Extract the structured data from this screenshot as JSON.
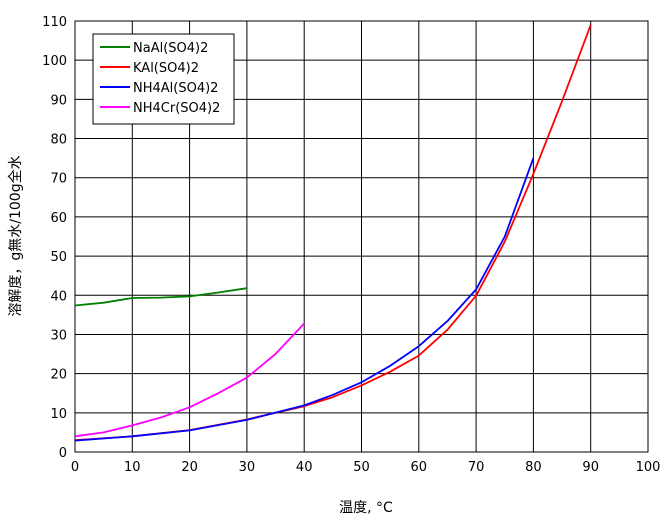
{
  "chart_data": {
    "type": "line",
    "xlabel": "温度, °C",
    "ylabel": "溶解度，g無水/100g全水",
    "xlim": [
      0,
      100
    ],
    "ylim": [
      0,
      110
    ],
    "xticks": [
      "0",
      "10",
      "20",
      "30",
      "40",
      "50",
      "60",
      "70",
      "80",
      "90",
      "100"
    ],
    "yticks": [
      "0",
      "10",
      "20",
      "30",
      "40",
      "50",
      "60",
      "70",
      "80",
      "90",
      "100",
      "110"
    ],
    "grid": true,
    "legend": "top-left",
    "series": [
      {
        "name": "NaAl(SO4)2",
        "color": "#008000",
        "x": [
          0,
          5,
          10,
          15,
          20,
          25,
          30
        ],
        "y": [
          37.4,
          38.1,
          39.3,
          39.4,
          39.7,
          40.7,
          41.8
        ]
      },
      {
        "name": "KAl(SO4)2",
        "color": "#ff0000",
        "x": [
          0,
          10,
          20,
          30,
          40,
          45,
          50,
          55,
          60,
          65,
          70,
          75,
          80,
          85,
          90
        ],
        "y": [
          3,
          4,
          5.6,
          8.3,
          11.7,
          14,
          17,
          20.5,
          24.6,
          31.2,
          39.9,
          53.7,
          71,
          89.5,
          109
        ]
      },
      {
        "name": "NH4Al(SO4)2",
        "color": "#0000ff",
        "x": [
          0,
          10,
          20,
          30,
          40,
          45,
          50,
          55,
          60,
          65,
          70,
          75,
          80
        ],
        "y": [
          2.9,
          4,
          5.5,
          8.2,
          11.9,
          14.6,
          17.8,
          22,
          27,
          33.4,
          41.5,
          55,
          75
        ]
      },
      {
        "name": "NH4Cr(SO4)2",
        "color": "#ff00ff",
        "x": [
          0,
          5,
          10,
          15,
          20,
          25,
          30,
          35,
          40
        ],
        "y": [
          4,
          5,
          6.8,
          8.8,
          11.4,
          15,
          19,
          25,
          32.8
        ]
      }
    ]
  }
}
